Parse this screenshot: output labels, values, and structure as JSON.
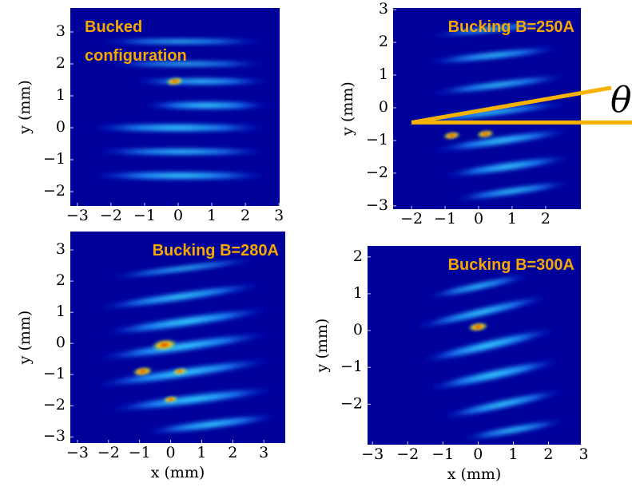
{
  "chart_data": [
    {
      "type": "image",
      "title_lines": [
        "Bucked",
        "configuration"
      ],
      "ylabel": "y (mm)",
      "xlim": [
        -3.21,
        3.02
      ],
      "ylim": [
        -2.45,
        3.75
      ],
      "xticks": [
        {
          "value": -3,
          "label": "−3"
        },
        {
          "value": -2,
          "label": "−2"
        },
        {
          "value": -1,
          "label": "−1"
        },
        0,
        1,
        2,
        3
      ],
      "yticks": [
        {
          "value": -2,
          "label": "−2"
        },
        {
          "value": -1,
          "label": "−1"
        },
        0,
        1,
        2,
        3
      ]
    },
    {
      "type": "image",
      "title_lines": [
        "Bucking B=250A"
      ],
      "ylabel": "y (mm)",
      "annotation": "θ",
      "xlim": [
        -2.55,
        3.05
      ],
      "ylim": [
        -3.1,
        3.05
      ],
      "xticks": [
        {
          "value": -2,
          "label": "−2"
        },
        {
          "value": -1,
          "label": "−1"
        },
        0,
        1,
        2
      ],
      "yticks": [
        {
          "value": -3,
          "label": "−3"
        },
        {
          "value": -2,
          "label": "−2"
        },
        {
          "value": -1,
          "label": "−1"
        },
        0,
        1,
        2,
        3
      ]
    },
    {
      "type": "image",
      "title_lines": [
        "Bucking B=280A"
      ],
      "ylabel": "y (mm)",
      "xlabel": "x (mm)",
      "xlim": [
        -3.23,
        3.69
      ],
      "ylim": [
        -3.2,
        3.59
      ],
      "xticks": [
        {
          "value": -3,
          "label": "−3"
        },
        {
          "value": -2,
          "label": "−2"
        },
        {
          "value": -1,
          "label": "−1"
        },
        0,
        1,
        2,
        3
      ],
      "yticks": [
        {
          "value": -3,
          "label": "−3"
        },
        {
          "value": -2,
          "label": "−2"
        },
        {
          "value": -1,
          "label": "−1"
        },
        0,
        1,
        2,
        3
      ]
    },
    {
      "type": "image",
      "title_lines": [
        "Bucking B=300A"
      ],
      "ylabel": "y (mm)",
      "xlabel": "x (mm)",
      "xlim": [
        -3.14,
        2.92
      ],
      "ylim": [
        -3.1,
        2.3
      ],
      "xticks": [
        {
          "value": -3,
          "label": "−3"
        },
        {
          "value": -2,
          "label": "−2"
        },
        {
          "value": -1,
          "label": "−1"
        },
        0,
        1,
        2,
        3
      ],
      "yticks": [
        {
          "value": -2,
          "label": "−2"
        },
        {
          "value": -1,
          "label": "−1"
        },
        0,
        1,
        2
      ]
    }
  ]
}
